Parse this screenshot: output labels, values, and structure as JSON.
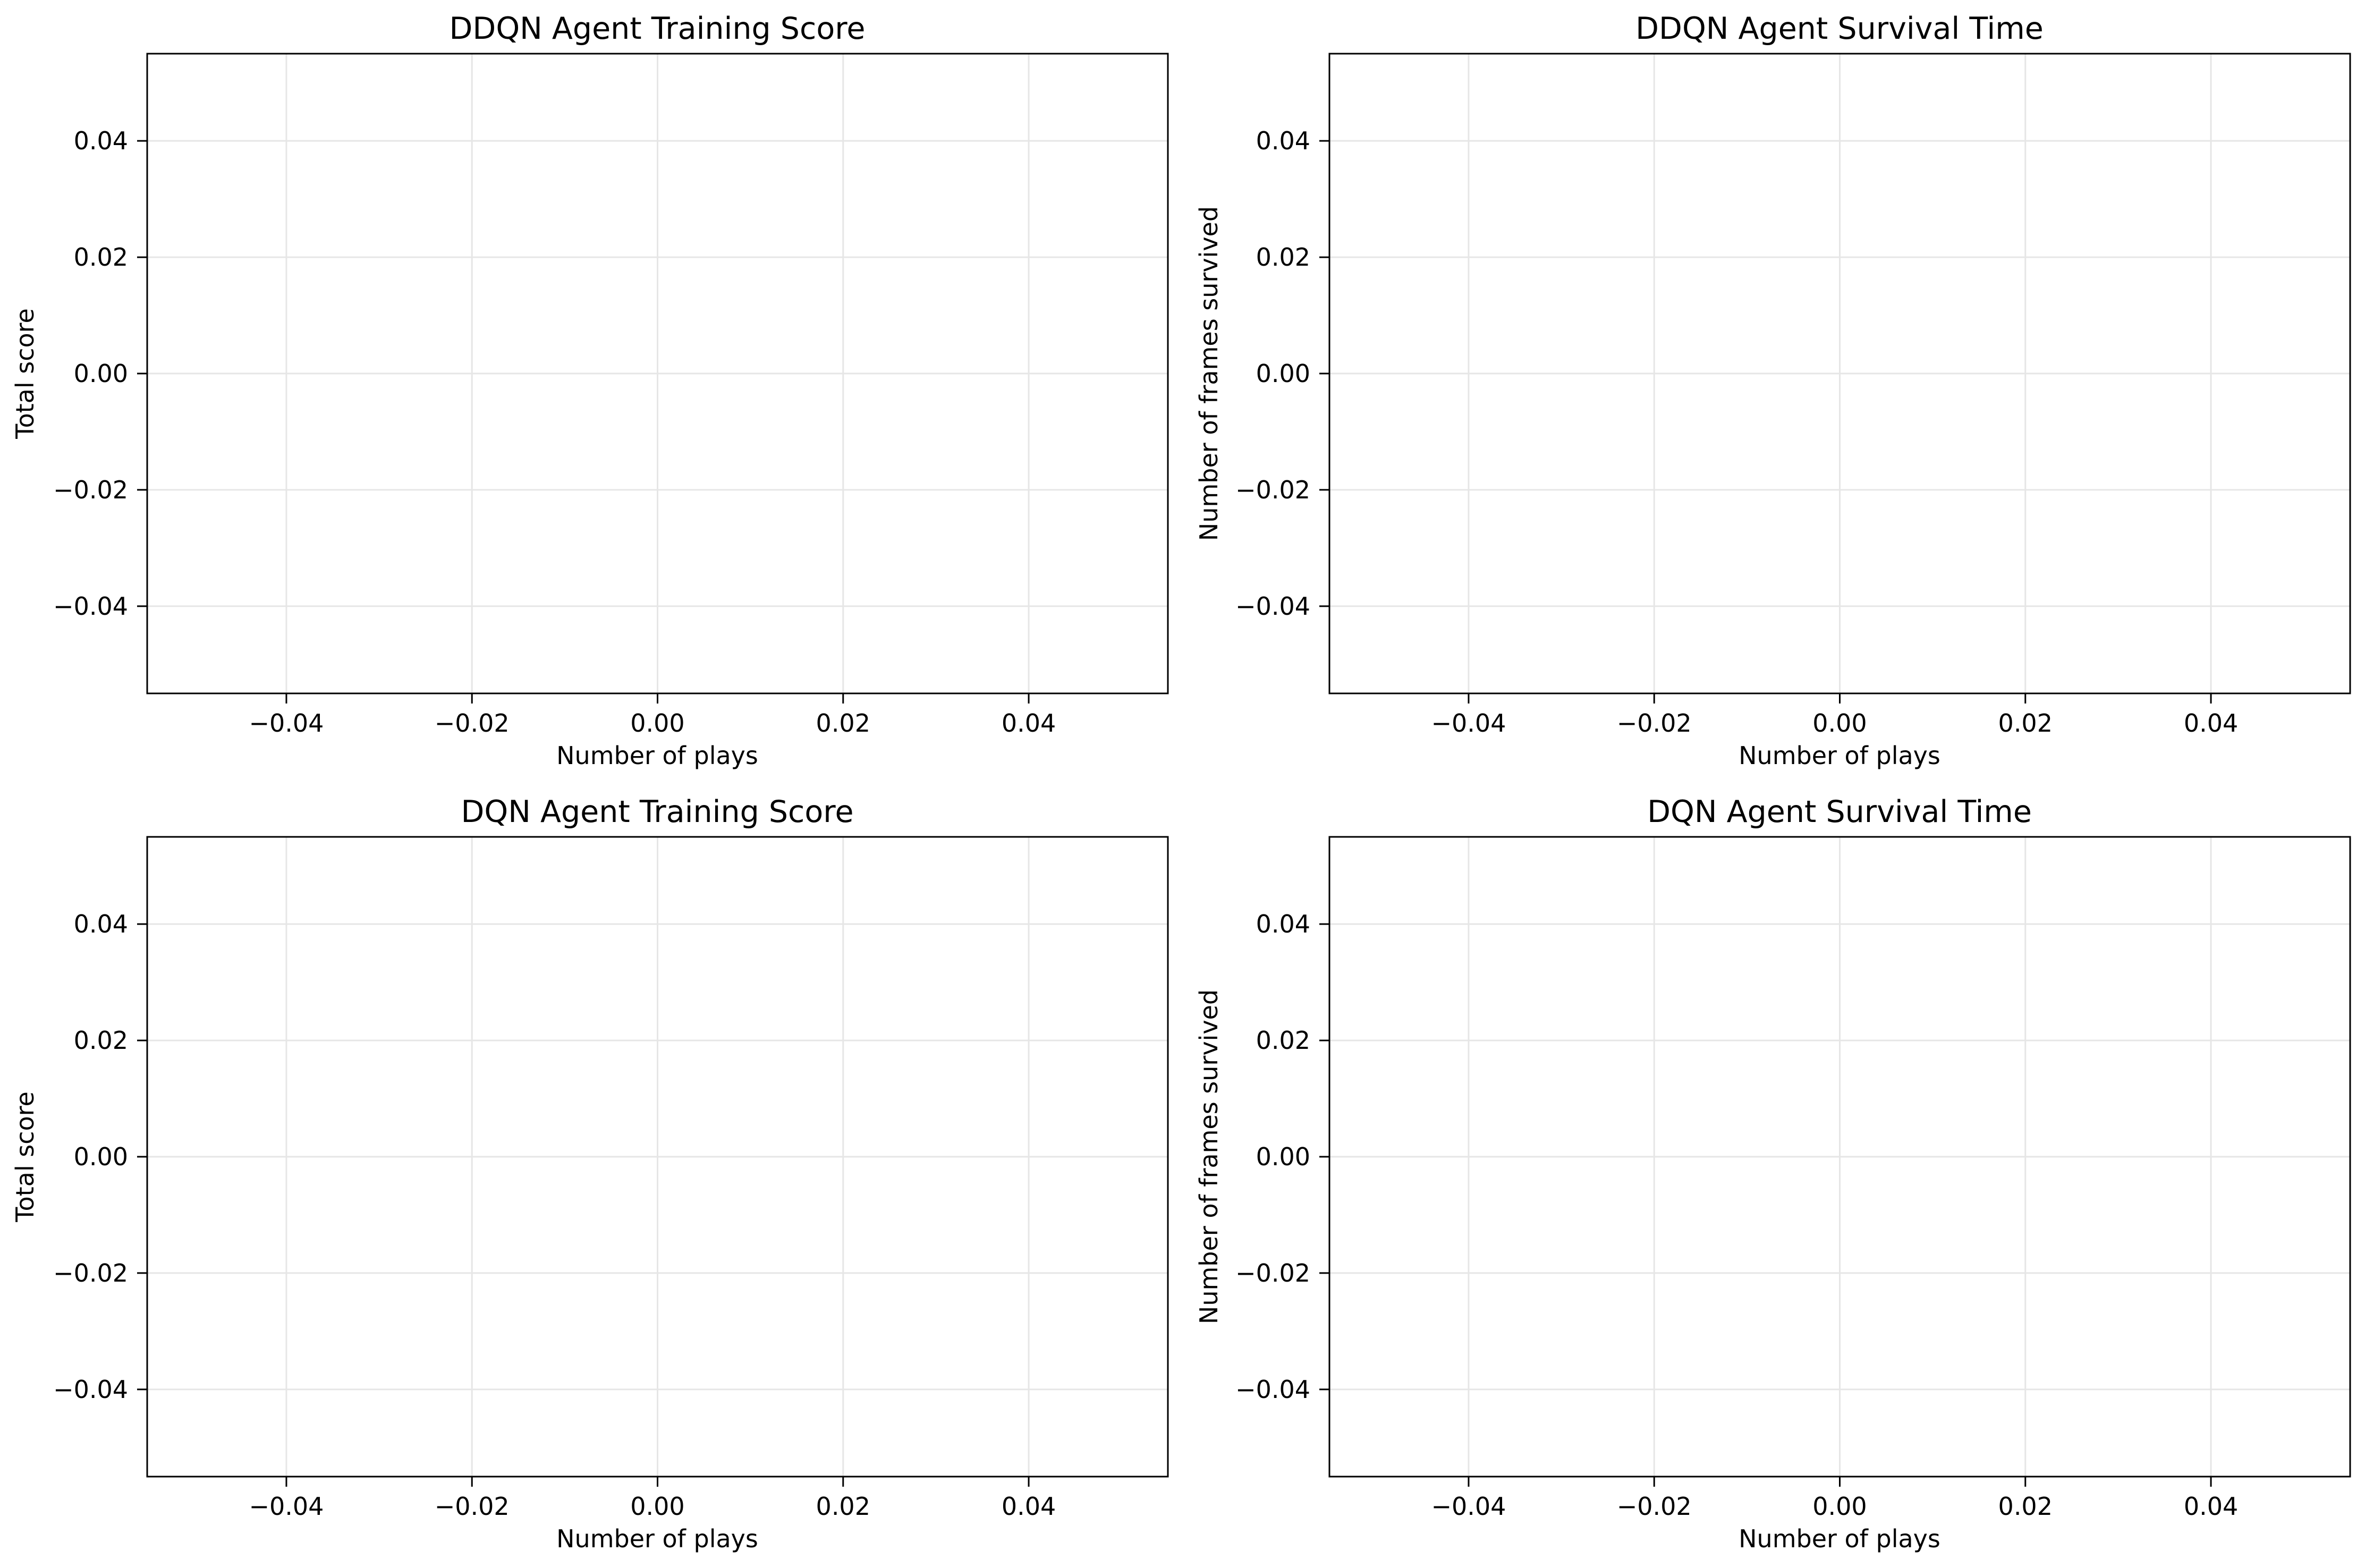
{
  "chart_data": [
    {
      "type": "line",
      "title": "DDQN Agent Training Score",
      "xlabel": "Number of plays",
      "ylabel": "Total score",
      "xlim": [
        -0.055,
        0.055
      ],
      "ylim": [
        -0.055,
        0.055
      ],
      "xticks": [
        -0.04,
        -0.02,
        0.0,
        0.02,
        0.04
      ],
      "yticks": [
        -0.04,
        -0.02,
        0.0,
        0.02,
        0.04
      ],
      "xtick_labels": [
        "−0.04",
        "−0.02",
        "0.00",
        "0.02",
        "0.04"
      ],
      "ytick_labels": [
        "−0.04",
        "−0.02",
        "0.00",
        "0.02",
        "0.04"
      ],
      "grid": true,
      "series": [
        {
          "x": [],
          "y": []
        }
      ]
    },
    {
      "type": "line",
      "title": "DDQN Agent Survival Time",
      "xlabel": "Number of plays",
      "ylabel": "Number of frames survived",
      "xlim": [
        -0.055,
        0.055
      ],
      "ylim": [
        -0.055,
        0.055
      ],
      "xticks": [
        -0.04,
        -0.02,
        0.0,
        0.02,
        0.04
      ],
      "yticks": [
        -0.04,
        -0.02,
        0.0,
        0.02,
        0.04
      ],
      "xtick_labels": [
        "−0.04",
        "−0.02",
        "0.00",
        "0.02",
        "0.04"
      ],
      "ytick_labels": [
        "−0.04",
        "−0.02",
        "0.00",
        "0.02",
        "0.04"
      ],
      "grid": true,
      "series": [
        {
          "x": [],
          "y": []
        }
      ]
    },
    {
      "type": "line",
      "title": "DQN Agent Training Score",
      "xlabel": "Number of plays",
      "ylabel": "Total score",
      "xlim": [
        -0.055,
        0.055
      ],
      "ylim": [
        -0.055,
        0.055
      ],
      "xticks": [
        -0.04,
        -0.02,
        0.0,
        0.02,
        0.04
      ],
      "yticks": [
        -0.04,
        -0.02,
        0.0,
        0.02,
        0.04
      ],
      "xtick_labels": [
        "−0.04",
        "−0.02",
        "0.00",
        "0.02",
        "0.04"
      ],
      "ytick_labels": [
        "−0.04",
        "−0.02",
        "0.00",
        "0.02",
        "0.04"
      ],
      "grid": true,
      "series": [
        {
          "x": [],
          "y": []
        }
      ]
    },
    {
      "type": "line",
      "title": "DQN Agent Survival Time",
      "xlabel": "Number of plays",
      "ylabel": "Number of frames survived",
      "xlim": [
        -0.055,
        0.055
      ],
      "ylim": [
        -0.055,
        0.055
      ],
      "xticks": [
        -0.04,
        -0.02,
        0.0,
        0.02,
        0.04
      ],
      "yticks": [
        -0.04,
        -0.02,
        0.0,
        0.02,
        0.04
      ],
      "xtick_labels": [
        "−0.04",
        "−0.02",
        "0.00",
        "0.02",
        "0.04"
      ],
      "ytick_labels": [
        "−0.04",
        "−0.02",
        "0.00",
        "0.02",
        "0.04"
      ],
      "grid": true,
      "series": [
        {
          "x": [],
          "y": []
        }
      ]
    }
  ]
}
